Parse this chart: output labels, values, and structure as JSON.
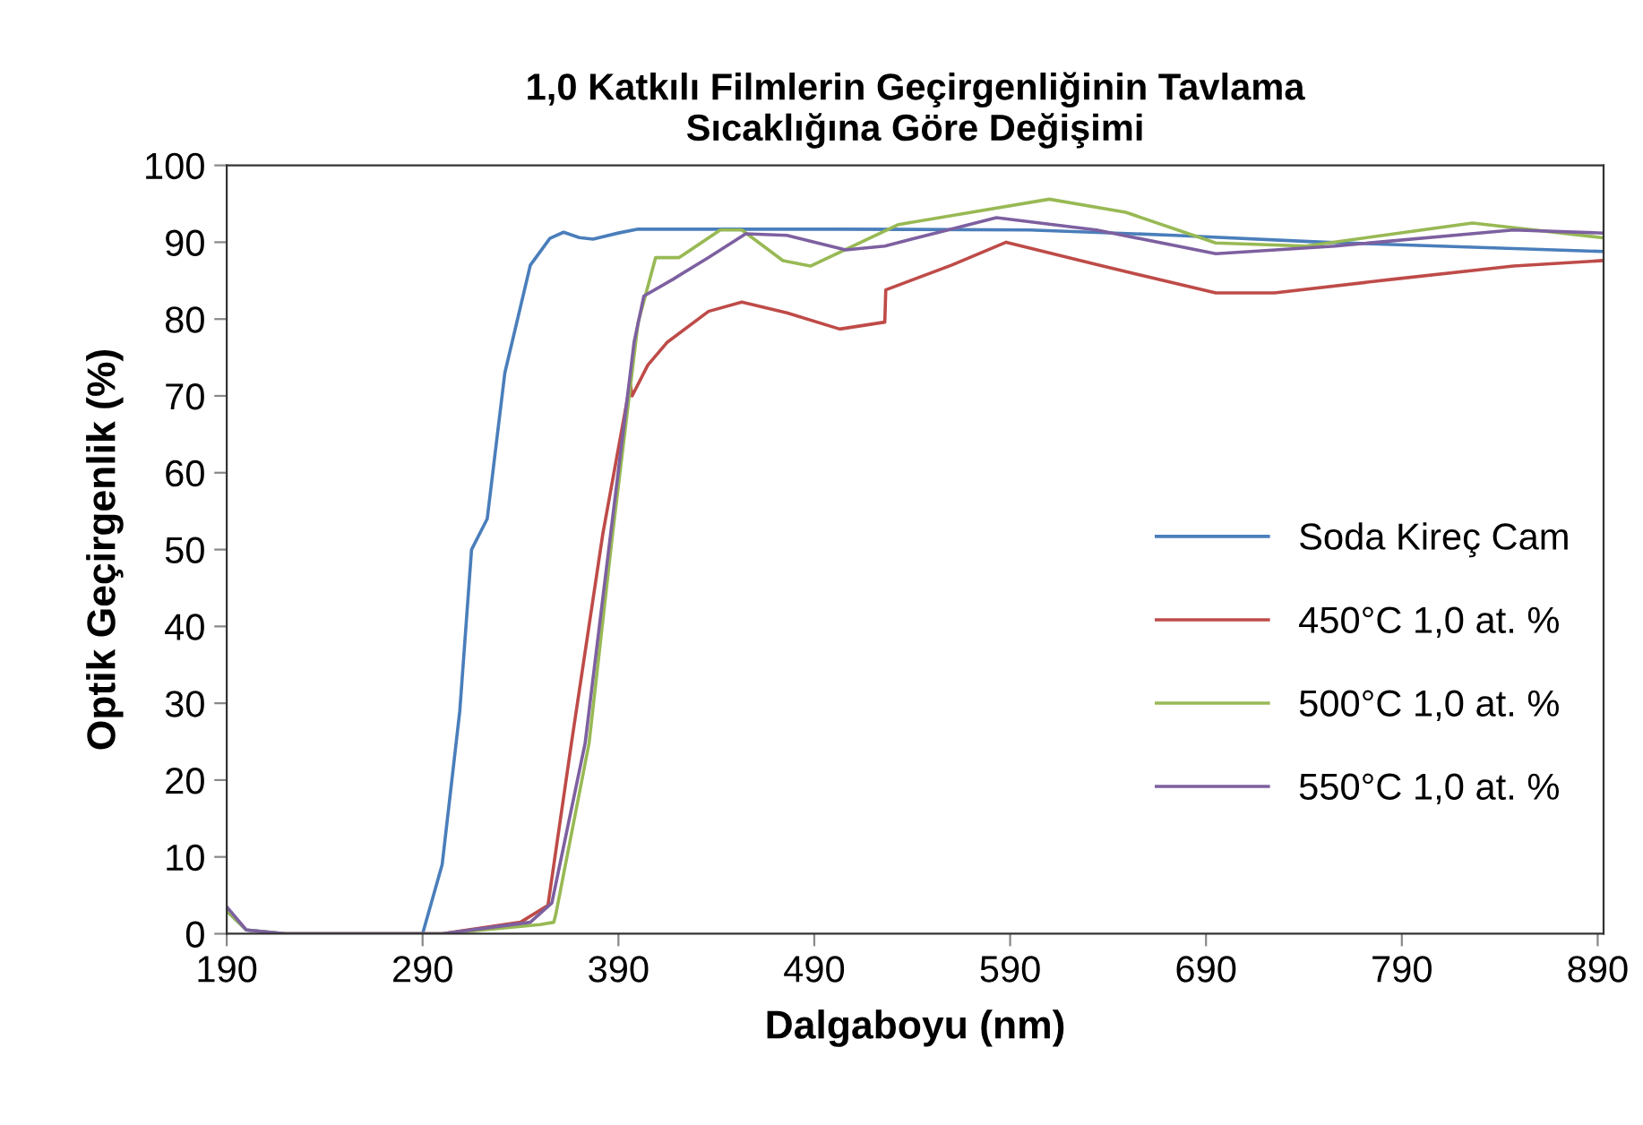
{
  "chart_data": {
    "type": "line",
    "title": "1,0 Katkılı Filmlerin Geçirgenliğinin Tavlama\nSıcaklığına Göre Değişimi",
    "xlabel": "Dalgaboyu (nm)",
    "ylabel": "Optik Geçirgenlik (%)",
    "xlim": [
      190,
      893
    ],
    "ylim": [
      0,
      100
    ],
    "xticks": [
      190,
      290,
      390,
      490,
      590,
      690,
      790,
      890
    ],
    "yticks": [
      0,
      10,
      20,
      30,
      40,
      50,
      60,
      70,
      80,
      90,
      100
    ],
    "grid": false,
    "legend": "right",
    "marker": "none",
    "line_style": "solid",
    "series": [
      {
        "name": "Soda Kireç Cam",
        "color": "#4a7ebb",
        "x": [
          190,
          200,
          220,
          290,
          300,
          309,
          315,
          323,
          332,
          345,
          355,
          362,
          370,
          377,
          390,
          400,
          500,
          600,
          674,
          750,
          892
        ],
        "values": [
          3,
          0.5,
          0,
          0,
          9,
          29,
          50,
          54,
          73,
          87,
          90.5,
          91.3,
          90.6,
          90.4,
          91.2,
          91.7,
          91.7,
          91.6,
          90.9,
          90,
          88.8
        ]
      },
      {
        "name": "450°C 1,0 at. %",
        "color": "#be4b48",
        "x": [
          220,
          300,
          340,
          354,
          366,
          382,
          396,
          397,
          405,
          415,
          436,
          453,
          476,
          503,
          526,
          526.5,
          560,
          588,
          634,
          695,
          725,
          786,
          847,
          892
        ],
        "values": [
          0,
          0,
          1.5,
          3.7,
          24.8,
          52,
          71.6,
          70,
          74,
          77,
          81,
          82.2,
          80.8,
          78.7,
          79.6,
          83.8,
          87,
          90,
          87.1,
          83.4,
          83.4,
          85.2,
          86.9,
          87.6
        ]
      },
      {
        "name": "500°C 1,0 at. %",
        "color": "#98b954",
        "x": [
          190,
          200,
          220,
          300,
          350,
          357,
          358,
          375,
          387,
          400,
          409,
          421,
          442,
          453,
          474,
          488,
          533,
          610,
          649,
          695,
          741,
          826,
          892
        ],
        "values": [
          3,
          0.5,
          0,
          0,
          1.2,
          1.5,
          2.5,
          24.8,
          52,
          79.5,
          88,
          88,
          91.6,
          91.6,
          87.6,
          86.9,
          92.3,
          95.6,
          93.9,
          89.9,
          89.5,
          92.5,
          90.6
        ]
      },
      {
        "name": "550°C 1,0 at. %",
        "color": "#7d60a0",
        "x": [
          190,
          200,
          220,
          300,
          345,
          356,
          373,
          386,
          398,
          403,
          418,
          436,
          455,
          476,
          506,
          526,
          583,
          634,
          695,
          756,
          847,
          892
        ],
        "values": [
          3.5,
          0.5,
          0,
          0,
          1.5,
          4,
          24.8,
          52,
          77,
          83,
          85.2,
          88,
          91.1,
          90.9,
          89,
          89.5,
          93.2,
          91.6,
          88.5,
          89.5,
          91.6,
          91.2
        ]
      }
    ]
  }
}
